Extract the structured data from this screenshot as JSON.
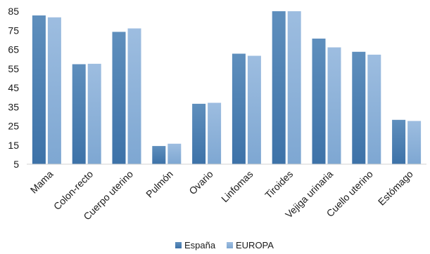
{
  "chart_data": {
    "type": "bar",
    "title": "",
    "xlabel": "",
    "ylabel": "",
    "ylim": [
      5,
      85
    ],
    "yticks": [
      5,
      15,
      25,
      35,
      45,
      55,
      65,
      75,
      85
    ],
    "ytick_labels": [
      "5",
      "15",
      "25",
      "35",
      "45",
      "55",
      "65",
      "75",
      "85"
    ],
    "grid": false,
    "legend_position": "bottom",
    "categories": [
      "Mama",
      "Colon-recto",
      "Cuerpo uterino",
      "Pulmón",
      "Ovario",
      "Linfomas",
      "Tiroides",
      "Vejiga urinaria",
      "Cuello uterino",
      "Estómago"
    ],
    "series": [
      {
        "name": "España",
        "color": "#4a7eb0",
        "values": [
          82.8,
          57.3,
          74.2,
          14.5,
          36.6,
          62.8,
          85,
          70.7,
          63.8,
          28.2
        ]
      },
      {
        "name": "EUROPA",
        "color": "#8fb3d9",
        "values": [
          81.8,
          57.5,
          76.0,
          15.7,
          37.1,
          61.7,
          85,
          66.1,
          62.3,
          27.6
        ]
      }
    ]
  }
}
